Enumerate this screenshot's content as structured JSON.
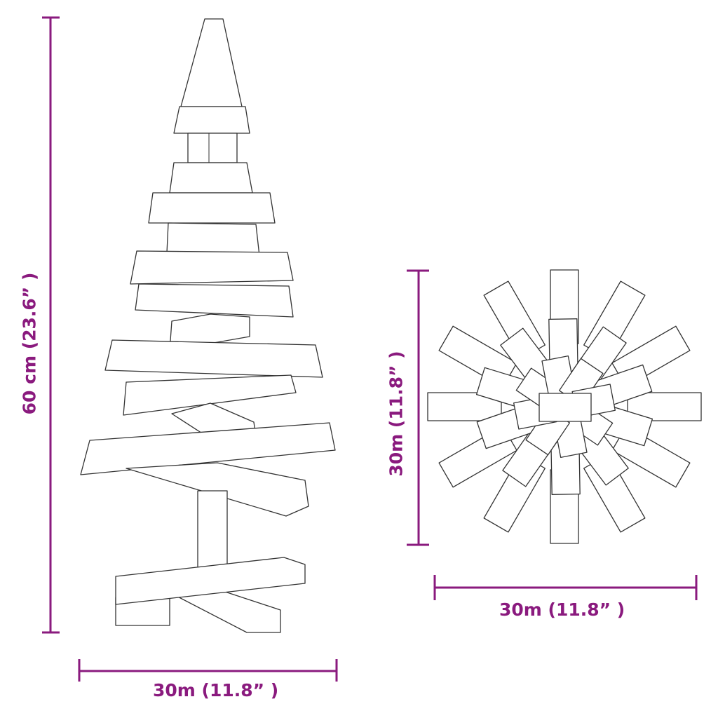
{
  "colors": {
    "dimension": "#8a1a7e",
    "outline": "#333333"
  },
  "dimensions": {
    "tree_height": "60 cm (23.6” )",
    "tree_width": "30m (11.8” )",
    "top_view_height": "30m (11.8” )",
    "top_view_width": "30m (11.8” )"
  }
}
